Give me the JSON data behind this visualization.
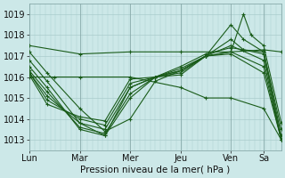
{
  "title": "Pression niveau de la mer( hPa )",
  "background_color": "#cce8e8",
  "grid_color": "#aacccc",
  "line_color": "#1a5c1a",
  "ylim": [
    1012.5,
    1019.5
  ],
  "yticks": [
    1013,
    1014,
    1015,
    1016,
    1017,
    1018,
    1019
  ],
  "day_labels": [
    "Lun",
    "Mar",
    "Mer",
    "Jeu",
    "Ven",
    "Sa"
  ],
  "day_x": [
    0.0,
    0.2,
    0.4,
    0.6,
    0.8,
    0.93
  ],
  "x_max": 1.0,
  "series": [
    {
      "x": [
        0.0,
        0.2,
        0.4,
        0.6,
        0.8,
        0.93,
        1.0
      ],
      "y": [
        1017.5,
        1017.1,
        1017.2,
        1017.2,
        1017.2,
        1017.3,
        1017.2
      ]
    },
    {
      "x": [
        0.0,
        0.07,
        0.2,
        0.3,
        0.4,
        0.5,
        0.6,
        0.7,
        0.8,
        0.85,
        0.88,
        0.93,
        1.0
      ],
      "y": [
        1017.2,
        1016.2,
        1014.5,
        1013.4,
        1014.0,
        1015.8,
        1016.3,
        1017.0,
        1017.2,
        1019.0,
        1018.0,
        1017.5,
        1013.8
      ]
    },
    {
      "x": [
        0.0,
        0.07,
        0.2,
        0.3,
        0.4,
        0.5,
        0.6,
        0.7,
        0.8,
        0.85,
        0.93,
        1.0
      ],
      "y": [
        1016.8,
        1015.8,
        1013.8,
        1013.2,
        1015.0,
        1016.0,
        1016.5,
        1017.1,
        1017.4,
        1017.3,
        1017.2,
        1013.5
      ]
    },
    {
      "x": [
        0.0,
        0.07,
        0.2,
        0.3,
        0.4,
        0.5,
        0.6,
        0.7,
        0.8,
        0.85,
        0.93,
        1.0
      ],
      "y": [
        1016.5,
        1015.5,
        1013.5,
        1013.2,
        1015.5,
        1016.0,
        1016.4,
        1017.0,
        1018.5,
        1017.8,
        1017.2,
        1013.2
      ]
    },
    {
      "x": [
        0.0,
        0.07,
        0.2,
        0.3,
        0.4,
        0.5,
        0.6,
        0.7,
        0.8,
        0.85,
        0.93,
        1.0
      ],
      "y": [
        1016.3,
        1015.3,
        1013.6,
        1013.3,
        1015.2,
        1016.0,
        1016.3,
        1017.0,
        1017.8,
        1017.3,
        1017.1,
        1013.0
      ]
    },
    {
      "x": [
        0.0,
        0.07,
        0.2,
        0.3,
        0.4,
        0.5,
        0.6,
        0.7,
        0.8,
        0.93,
        1.0
      ],
      "y": [
        1016.2,
        1015.1,
        1013.8,
        1013.5,
        1015.5,
        1016.0,
        1016.3,
        1017.0,
        1017.5,
        1016.8,
        1013.0
      ]
    },
    {
      "x": [
        0.0,
        0.07,
        0.2,
        0.3,
        0.4,
        0.5,
        0.6,
        0.7,
        0.8,
        0.93,
        1.0
      ],
      "y": [
        1016.2,
        1014.9,
        1014.0,
        1013.7,
        1015.7,
        1016.0,
        1016.2,
        1017.0,
        1017.2,
        1016.5,
        1013.0
      ]
    },
    {
      "x": [
        0.0,
        0.07,
        0.2,
        0.3,
        0.4,
        0.5,
        0.6,
        0.7,
        0.8,
        0.93,
        1.0
      ],
      "y": [
        1016.1,
        1014.7,
        1014.1,
        1013.9,
        1015.9,
        1016.0,
        1016.1,
        1017.0,
        1017.1,
        1016.2,
        1013.0
      ]
    },
    {
      "x": [
        0.0,
        0.1,
        0.2,
        0.4,
        0.6,
        0.7,
        0.8,
        0.93,
        1.0
      ],
      "y": [
        1016.0,
        1016.0,
        1016.0,
        1016.0,
        1015.5,
        1015.0,
        1015.0,
        1014.5,
        1013.0
      ]
    }
  ]
}
